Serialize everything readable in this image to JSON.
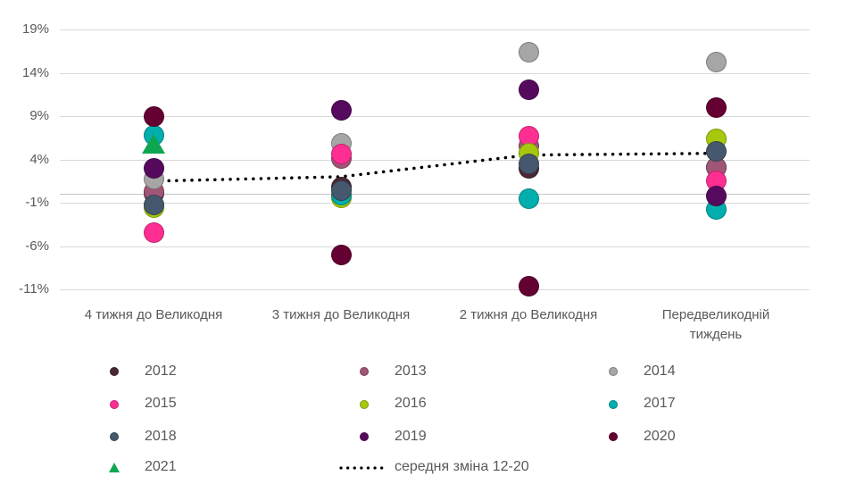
{
  "chart_data": {
    "type": "scatter",
    "title": "",
    "xlabel": "",
    "ylabel": "",
    "grid": true,
    "legend_position": "bottom",
    "ylim": [
      -13,
      21
    ],
    "y_ticks": [
      "19%",
      "14%",
      "9%",
      "4%",
      "-1%",
      "-6%",
      "-11%"
    ],
    "categories": [
      "4 тижня до Великодня",
      "3 тижня до Великодня",
      "2 тижня до Великодня",
      "Передвеликодній тиждень"
    ],
    "series": [
      {
        "name": "2012",
        "marker": "circle",
        "color": "#4B2735",
        "values": [
          0.1,
          0.8,
          3.0,
          3.1
        ]
      },
      {
        "name": "2013",
        "marker": "circle",
        "color": "#A05676",
        "values": [
          0.3,
          4.1,
          5.5,
          3.1
        ]
      },
      {
        "name": "2014",
        "marker": "circle",
        "color": "#A6A6A6",
        "values": [
          1.7,
          5.9,
          16.4,
          15.2
        ]
      },
      {
        "name": "2015",
        "marker": "circle",
        "color": "#FF2E92",
        "values": [
          -4.5,
          4.6,
          6.7,
          1.5
        ]
      },
      {
        "name": "2016",
        "marker": "circle",
        "color": "#A6C80D",
        "values": [
          -1.6,
          -0.4,
          4.7,
          6.4
        ]
      },
      {
        "name": "2017",
        "marker": "circle",
        "color": "#00AEAE",
        "values": [
          6.8,
          -0.1,
          -0.5,
          -1.8
        ]
      },
      {
        "name": "2018",
        "marker": "circle",
        "color": "#46586D",
        "values": [
          -1.3,
          0.4,
          3.5,
          4.9
        ]
      },
      {
        "name": "2019",
        "marker": "circle",
        "color": "#560A5E",
        "values": [
          3.0,
          9.7,
          12.0,
          -0.2
        ]
      },
      {
        "name": "2020",
        "marker": "circle",
        "color": "#650132",
        "values": [
          9.0,
          -7.0,
          -10.6,
          10.0
        ]
      },
      {
        "name": "2021",
        "marker": "triangle",
        "color": "#0EA751",
        "values": [
          5.8,
          null,
          null,
          null
        ]
      }
    ],
    "avg_line": {
      "name": "середня зміна 12-20",
      "style": "dotted",
      "color": "#000000",
      "values": [
        1.5,
        2.0,
        4.5,
        4.7
      ]
    }
  }
}
